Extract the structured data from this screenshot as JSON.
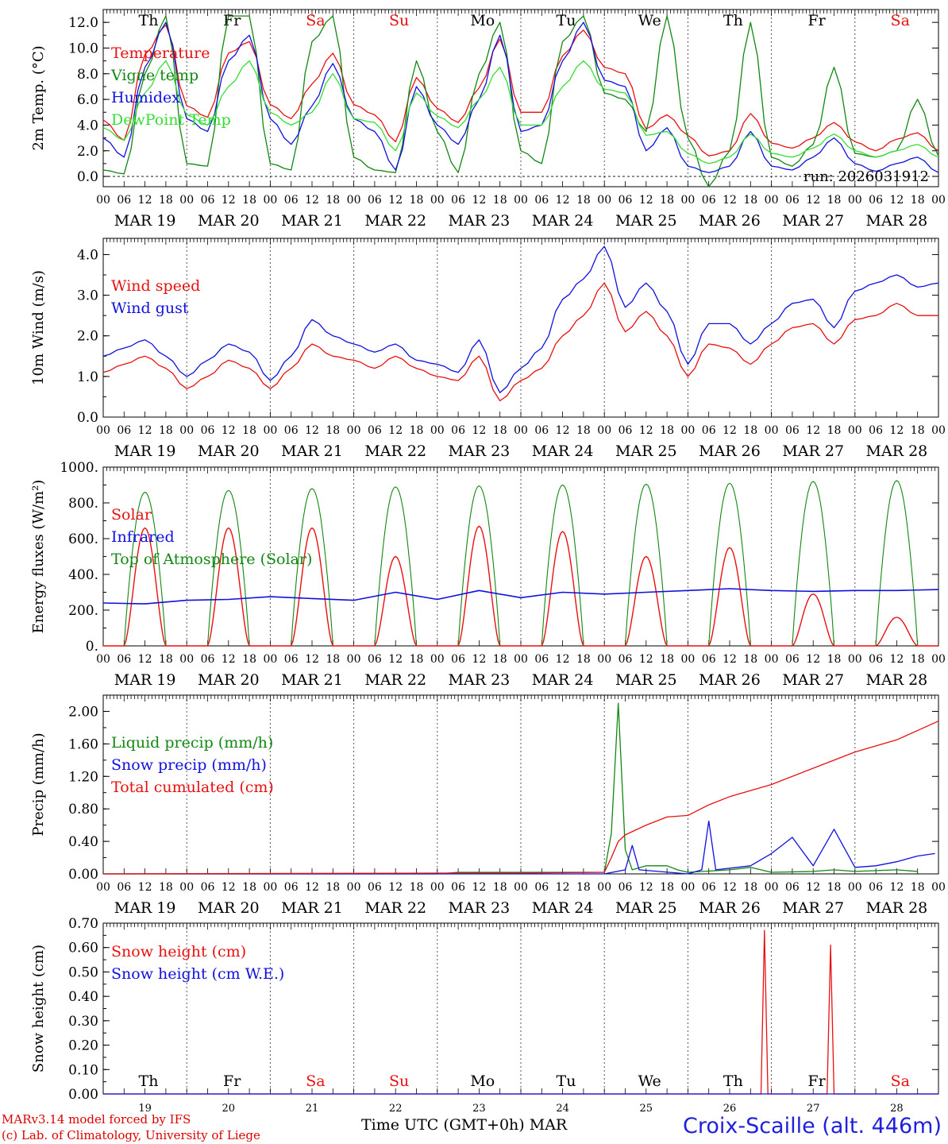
{
  "colors": {
    "red": "#e81010",
    "blue": "#1010e0",
    "green": "#118811",
    "lightgreen": "#33dd33",
    "weekend": "#e81010",
    "weekday": "#000000"
  },
  "x_axis": {
    "hour_ticks": [
      "00",
      "06",
      "12",
      "18"
    ],
    "final_tick": "00",
    "date_labels": [
      "MAR 19",
      "MAR 20",
      "MAR 21",
      "MAR 22",
      "MAR 23",
      "MAR 24",
      "MAR 25",
      "MAR 26",
      "MAR 27",
      "MAR 28"
    ],
    "weekdays": [
      "Th",
      "Fr",
      "Sa",
      "Su",
      "Mo",
      "Tu",
      "We",
      "Th",
      "Fr",
      "Sa"
    ],
    "weekend_flags": [
      false,
      false,
      true,
      true,
      false,
      false,
      false,
      false,
      false,
      true
    ],
    "day_numbers": [
      "19",
      "20",
      "21",
      "22",
      "23",
      "24",
      "25",
      "26",
      "27",
      "28"
    ],
    "axis_title": "Time UTC (GMT+0h)",
    "month": "MAR"
  },
  "footer": {
    "model_line": "MARv3.14 model forced by IFS",
    "credit_line": "(c) Lab. of Climatology, University of Liege",
    "station": "Croix-Scaille (alt. 446m)"
  },
  "chart_data": [
    {
      "type": "line",
      "ylabel": "2m Temp. (°C)",
      "ylim": [
        -0.8,
        13.0
      ],
      "yticks": [
        "0.0",
        "2.0",
        "4.0",
        "6.0",
        "8.0",
        "10.0",
        "12.0"
      ],
      "annotation": "run: 2026031912",
      "weekday_labels": "top",
      "legend": [
        "Temperature",
        "Vigne temp",
        "Humidex",
        "DewPoint Temp"
      ],
      "x": "hours since MAR 19 00 UTC, 6-hourly",
      "series": [
        {
          "name": "Temperature",
          "color": "red",
          "values": [
            4.4,
            2.8,
            9.5,
            11.8,
            5.5,
            4.6,
            9.6,
            10.5,
            5.6,
            4.5,
            7.2,
            9.6,
            5.6,
            4.8,
            2.7,
            7.7,
            5.3,
            4.2,
            6.9,
            10.7,
            5.0,
            5.0,
            9.4,
            11.4,
            8.5,
            8.0,
            3.7,
            4.8,
            3.2,
            1.6,
            2.0,
            4.9,
            2.6,
            2.2,
            3.0,
            4.2,
            2.7,
            2.0,
            2.9,
            3.4,
            2.0
          ]
        },
        {
          "name": "Vigne temp",
          "color": "green",
          "values": [
            0.5,
            0.2,
            8.0,
            12.5,
            1.0,
            0.8,
            12.5,
            12.5,
            1.0,
            0.5,
            10.5,
            12.5,
            1.5,
            0.5,
            0.3,
            9.0,
            3.5,
            0.3,
            8.0,
            12.0,
            2.0,
            1.0,
            10.5,
            12.5,
            6.5,
            6.0,
            3.5,
            12.5,
            3.0,
            -0.8,
            2.0,
            12.0,
            1.5,
            0.8,
            2.5,
            8.5,
            1.8,
            1.5,
            2.0,
            6.0,
            1.6
          ]
        },
        {
          "name": "Humidex",
          "color": "blue",
          "values": [
            3.0,
            1.5,
            8.5,
            12.0,
            4.5,
            3.5,
            9.0,
            11.0,
            4.5,
            2.5,
            5.5,
            8.8,
            4.5,
            3.5,
            0.5,
            7.0,
            4.0,
            2.5,
            6.0,
            11.0,
            3.5,
            4.0,
            9.0,
            12.0,
            7.5,
            7.0,
            2.0,
            3.8,
            0.8,
            0.3,
            0.8,
            3.5,
            0.8,
            0.5,
            1.5,
            3.0,
            1.0,
            0.4,
            1.0,
            1.5,
            0.3
          ]
        },
        {
          "name": "DewPoint Temp",
          "color": "lightgreen",
          "values": [
            3.8,
            2.8,
            6.5,
            9.0,
            4.8,
            4.0,
            7.0,
            9.0,
            5.0,
            4.0,
            5.0,
            8.0,
            4.5,
            4.2,
            2.0,
            6.5,
            4.7,
            3.8,
            6.0,
            8.5,
            4.0,
            4.0,
            7.0,
            9.0,
            6.8,
            6.5,
            3.2,
            3.5,
            1.8,
            1.0,
            1.5,
            3.3,
            1.8,
            1.5,
            2.2,
            3.3,
            2.0,
            1.5,
            2.0,
            2.5,
            1.5
          ]
        }
      ]
    },
    {
      "type": "line",
      "ylabel": "10m Wind (m/s)",
      "ylim": [
        0,
        4.4
      ],
      "yticks": [
        "0.0",
        "1.0",
        "2.0",
        "3.0",
        "4.0"
      ],
      "legend": [
        "Wind speed",
        "Wind gust"
      ],
      "x": "hours since MAR 19 00 UTC, 6-hourly",
      "series": [
        {
          "name": "Wind speed",
          "color": "red",
          "values": [
            1.1,
            1.3,
            1.5,
            1.2,
            0.7,
            1.0,
            1.4,
            1.2,
            0.7,
            1.2,
            1.8,
            1.5,
            1.4,
            1.2,
            1.5,
            1.2,
            1.0,
            0.9,
            1.5,
            0.4,
            0.9,
            1.2,
            2.0,
            2.5,
            3.3,
            2.1,
            2.6,
            2.0,
            1.0,
            1.8,
            1.7,
            1.3,
            1.8,
            2.2,
            2.3,
            1.8,
            2.4,
            2.5,
            2.8,
            2.5,
            2.5
          ]
        },
        {
          "name": "Wind gust",
          "color": "blue",
          "values": [
            1.5,
            1.7,
            1.9,
            1.5,
            1.0,
            1.4,
            1.8,
            1.6,
            0.9,
            1.5,
            2.4,
            2.0,
            1.8,
            1.6,
            1.8,
            1.4,
            1.3,
            1.1,
            1.9,
            0.6,
            1.2,
            1.7,
            2.9,
            3.4,
            4.2,
            2.7,
            3.3,
            2.6,
            1.3,
            2.3,
            2.3,
            1.8,
            2.3,
            2.8,
            2.9,
            2.2,
            3.1,
            3.3,
            3.5,
            3.2,
            3.3
          ]
        }
      ]
    },
    {
      "type": "line",
      "ylabel": "Energy fluxes (W/m²)",
      "ylim": [
        0,
        1000
      ],
      "yticks": [
        "0.",
        "200.",
        "400.",
        "600.",
        "800.",
        "1000."
      ],
      "legend": [
        "Solar",
        "Infrared",
        "Top of Atmosphere (Solar)"
      ],
      "x": "hours since MAR 19 00 UTC",
      "solar_peaks": [
        660,
        660,
        660,
        500,
        670,
        640,
        500,
        550,
        290,
        160
      ],
      "toa_peaks": [
        860,
        870,
        880,
        890,
        895,
        900,
        905,
        910,
        920,
        925
      ],
      "infrared_values": [
        240,
        235,
        255,
        260,
        275,
        265,
        255,
        300,
        260,
        310,
        270,
        300,
        290,
        300,
        310,
        320,
        310,
        305,
        310,
        310,
        315
      ]
    },
    {
      "type": "line",
      "ylabel": "Precip (mm/h)",
      "ylim": [
        0,
        2.2
      ],
      "yticks": [
        "0.00",
        "0.40",
        "0.80",
        "1.20",
        "1.60",
        "2.00"
      ],
      "legend": [
        "Liquid precip (mm/h)",
        "Snow precip (mm/h)",
        "Total cumulated (cm)"
      ],
      "x": "hours since MAR 19 00 UTC",
      "series": [
        {
          "name": "Liquid precip (mm/h)",
          "color": "green",
          "points": [
            [
              0,
              0
            ],
            [
              96,
              0
            ],
            [
              102,
              0.02
            ],
            [
              140,
              0.02
            ],
            [
              144,
              0.02
            ],
            [
              146,
              0.5
            ],
            [
              148,
              2.1
            ],
            [
              150,
              0.3
            ],
            [
              152,
              0.05
            ],
            [
              156,
              0.1
            ],
            [
              162,
              0.1
            ],
            [
              165,
              0.05
            ],
            [
              168,
              0.02
            ],
            [
              180,
              0.05
            ],
            [
              186,
              0.08
            ],
            [
              192,
              0.02
            ],
            [
              204,
              0.03
            ],
            [
              210,
              0.05
            ],
            [
              216,
              0.03
            ],
            [
              228,
              0.05
            ],
            [
              234,
              0.03
            ]
          ]
        },
        {
          "name": "Snow precip (mm/h)",
          "color": "blue",
          "points": [
            [
              0,
              0
            ],
            [
              144,
              0
            ],
            [
              150,
              0.05
            ],
            [
              152,
              0.35
            ],
            [
              154,
              0.05
            ],
            [
              168,
              0
            ],
            [
              172,
              0.05
            ],
            [
              174,
              0.65
            ],
            [
              176,
              0.05
            ],
            [
              186,
              0.1
            ],
            [
              192,
              0.25
            ],
            [
              198,
              0.45
            ],
            [
              204,
              0.1
            ],
            [
              210,
              0.55
            ],
            [
              216,
              0.08
            ],
            [
              222,
              0.1
            ],
            [
              228,
              0.15
            ],
            [
              234,
              0.22
            ],
            [
              239,
              0.25
            ]
          ]
        },
        {
          "name": "Total cumulated (cm)",
          "color": "red",
          "points": [
            [
              0,
              0
            ],
            [
              96,
              0.01
            ],
            [
              120,
              0.01
            ],
            [
              144,
              0.02
            ],
            [
              146,
              0.2
            ],
            [
              148,
              0.4
            ],
            [
              150,
              0.48
            ],
            [
              156,
              0.6
            ],
            [
              162,
              0.7
            ],
            [
              168,
              0.72
            ],
            [
              174,
              0.85
            ],
            [
              180,
              0.95
            ],
            [
              192,
              1.1
            ],
            [
              204,
              1.3
            ],
            [
              216,
              1.5
            ],
            [
              228,
              1.65
            ],
            [
              240,
              1.88
            ]
          ]
        }
      ]
    },
    {
      "type": "line",
      "ylabel": "Snow height (cm)",
      "ylim": [
        0,
        0.7
      ],
      "yticks": [
        "0.00",
        "0.10",
        "0.20",
        "0.30",
        "0.40",
        "0.50",
        "0.60",
        "0.70"
      ],
      "legend": [
        "Snow height (cm)",
        "Snow height (cm W.E.)"
      ],
      "weekday_labels": "bottom",
      "x": "hours since MAR 19 00 UTC",
      "series": [
        {
          "name": "Snow height (cm)",
          "color": "red",
          "points": [
            [
              0,
              0
            ],
            [
              189,
              0
            ],
            [
              190,
              0.67
            ],
            [
              191,
              0
            ],
            [
              208,
              0
            ],
            [
              209,
              0.61
            ],
            [
              210,
              0
            ],
            [
              240,
              0
            ]
          ]
        },
        {
          "name": "Snow height (cm W.E.)",
          "color": "blue",
          "points": [
            [
              0,
              0
            ],
            [
              240,
              0
            ]
          ]
        }
      ]
    }
  ]
}
